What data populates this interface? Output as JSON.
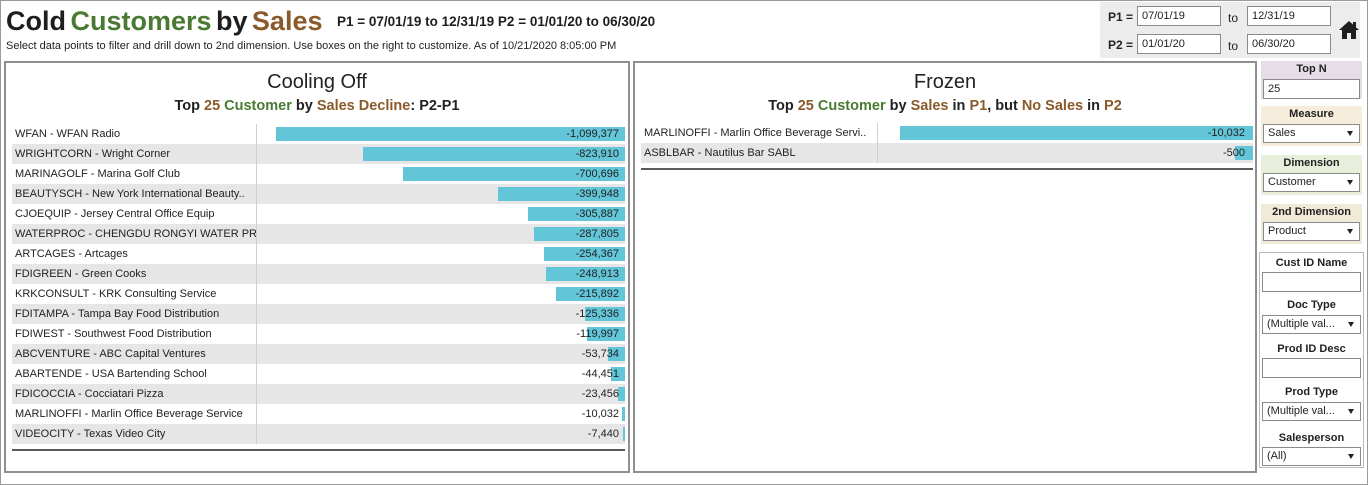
{
  "header": {
    "title_words": [
      "Cold",
      "Customers",
      "by",
      "Sales"
    ],
    "periods": "P1 = 07/01/19 to 12/31/19    P2 =  01/01/20 to  06/30/20",
    "subtitle": "Select data points to filter and drill down to 2nd dimension. Use boxes on the right to customize. As of  10/21/2020 8:05:00 PM"
  },
  "date_params": {
    "p1_label": "P1 =",
    "p2_label": "P2 =",
    "to_label": "to",
    "p1_start": "07/01/19",
    "p1_end": "12/31/19",
    "p2_start": "01/01/20",
    "p2_end": "06/30/20"
  },
  "cooling": {
    "title": "Cooling Off",
    "sub": [
      "Top ",
      "25",
      " Customer",
      " by ",
      "Sales Decline",
      ": P2-P1"
    ],
    "max_abs": 1099377,
    "rows": [
      {
        "label": "WFAN  -  WFAN Radio",
        "value": -1099377,
        "display": "-1,099,377"
      },
      {
        "label": "WRIGHTCORN  -  Wright Corner",
        "value": -823910,
        "display": "-823,910"
      },
      {
        "label": "MARINAGOLF  -  Marina Golf Club",
        "value": -700696,
        "display": "-700,696"
      },
      {
        "label": "BEAUTYSCH  -  New York International Beauty..",
        "value": -399948,
        "display": "-399,948"
      },
      {
        "label": "CJOEQUIP  -  Jersey Central Office Equip",
        "value": -305887,
        "display": "-305,887"
      },
      {
        "label": "WATERPROC  -  CHENGDU RONGYI WATER PR..",
        "value": -287805,
        "display": "-287,805"
      },
      {
        "label": "ARTCAGES  -  Artcages",
        "value": -254367,
        "display": "-254,367"
      },
      {
        "label": "FDIGREEN  -  Green Cooks",
        "value": -248913,
        "display": "-248,913"
      },
      {
        "label": "KRKCONSULT  -  KRK Consulting Service",
        "value": -215892,
        "display": "-215,892"
      },
      {
        "label": "FDITAMPA  -  Tampa Bay Food Distribution",
        "value": -125336,
        "display": "-125,336"
      },
      {
        "label": "FDIWEST  -  Southwest Food Distribution",
        "value": -119997,
        "display": "-119,997"
      },
      {
        "label": "ABCVENTURE  -  ABC Capital Ventures",
        "value": -53734,
        "display": "-53,734"
      },
      {
        "label": "ABARTENDE  -  USA Bartending School",
        "value": -44451,
        "display": "-44,451"
      },
      {
        "label": "FDICOCCIA  -  Cocciatari Pizza",
        "value": -23456,
        "display": "-23,456"
      },
      {
        "label": "MARLINOFFI  -  Marlin Office Beverage Service",
        "value": -10032,
        "display": "-10,032"
      },
      {
        "label": "VIDEOCITY  -  Texas Video City",
        "value": -7440,
        "display": "-7,440"
      }
    ]
  },
  "frozen": {
    "title": "Frozen",
    "sub": [
      "Top ",
      "25",
      " Customer",
      " by ",
      "Sales",
      " in ",
      "P1",
      ", but ",
      "No Sales",
      " in ",
      "P2"
    ],
    "max_abs": 10032,
    "rows": [
      {
        "label": "MARLINOFFI  -  Marlin Office Beverage Servi..",
        "value": -10032,
        "display": "-10,032"
      },
      {
        "label": "ASBLBAR  -  Nautilus Bar SABL",
        "value": -500,
        "display": "-500"
      }
    ]
  },
  "controls": {
    "top_n_label": "Top N",
    "top_n_value": "25",
    "measure_label": "Measure",
    "measure_value": "Sales",
    "dimension_label": "Dimension",
    "dimension_value": "Customer",
    "dim2_label": "2nd Dimension",
    "dim2_value": "Product",
    "cust_id_label": "Cust ID Name",
    "doc_type_label": "Doc Type",
    "doc_type_value": "(Multiple val...",
    "prod_id_label": "Prod ID Desc",
    "prod_type_label": "Prod Type",
    "prod_type_value": "(Multiple val...",
    "salesperson_label": "Salesperson",
    "salesperson_value": "(All)"
  },
  "colors": {
    "bar": "#62c6d8",
    "green": "#4a7a32",
    "brown": "#8a5a2b",
    "measure_bg": "#f6eddc",
    "dimension_bg": "#e8eedc",
    "dim2_bg": "#f2ead8",
    "topn_bg": "#e7dde8"
  }
}
